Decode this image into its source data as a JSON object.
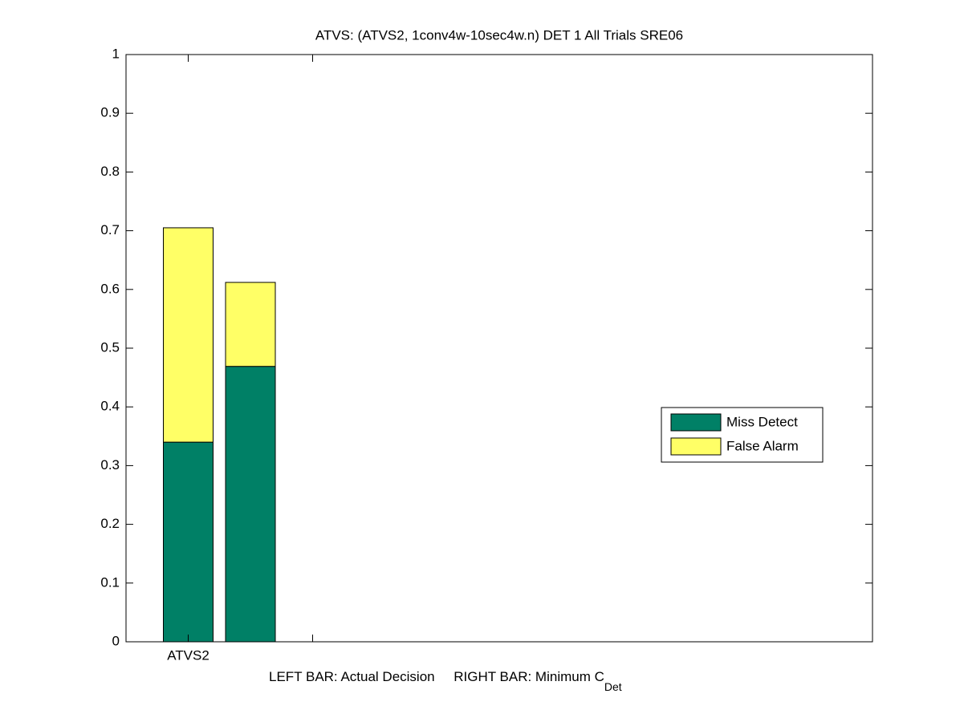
{
  "chart_data": {
    "type": "stacked_bar",
    "title": "ATVS: (ATVS2, 1conv4w-10sec4w.n) DET 1 All Trials SRE06",
    "xlabel": "LEFT BAR: Actual Decision     RIGHT BAR: Minimum C",
    "xlabel_subscript": "Det",
    "categories": [
      "ATVS2",
      null
    ],
    "x": [
      1,
      1.5
    ],
    "series": [
      {
        "name": "Miss Detect",
        "color": "#008066",
        "values": [
          0.34,
          0.469
        ]
      },
      {
        "name": "False Alarm",
        "color": "#ffff66",
        "values": [
          0.365,
          0.143
        ]
      }
    ],
    "xlim": [
      0.5,
      6.5
    ],
    "ylim": [
      0,
      1
    ],
    "yticks": [
      0,
      0.1,
      0.2,
      0.3,
      0.4,
      0.5,
      0.6,
      0.7,
      0.8,
      0.9,
      1
    ],
    "legend": "right"
  }
}
